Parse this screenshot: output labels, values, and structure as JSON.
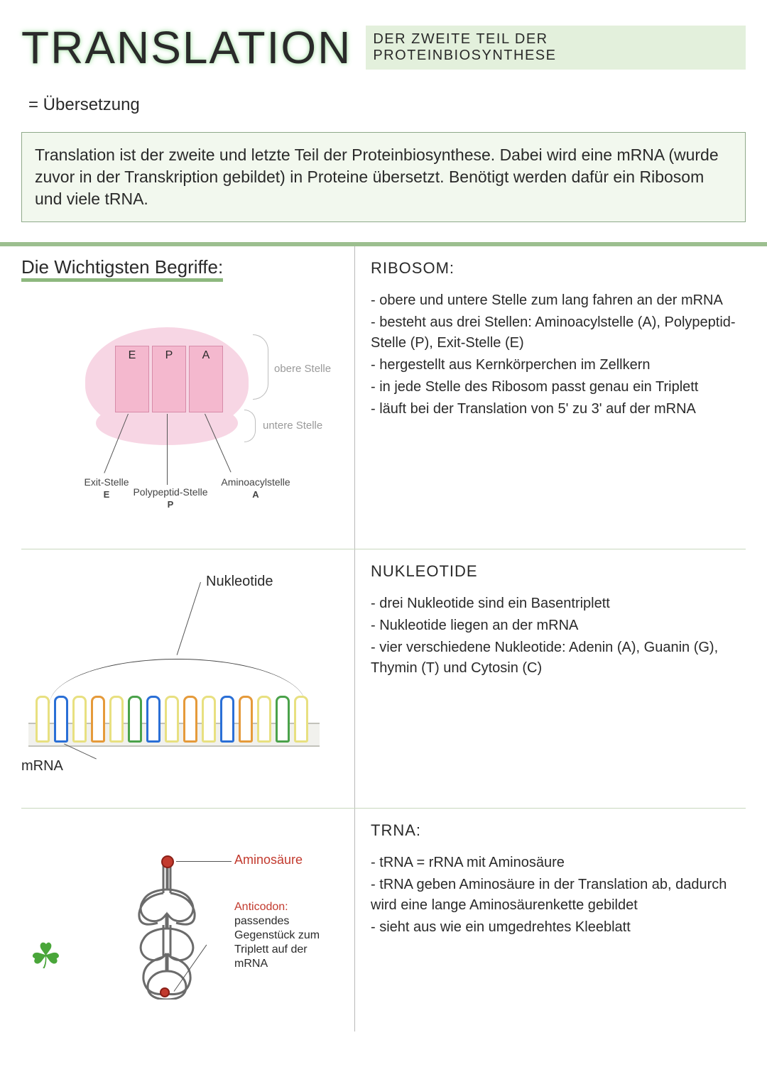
{
  "header": {
    "title": "Translation",
    "subtitle": "der zweite Teil der Proteinbiosynthese"
  },
  "equals_line": "= Übersetzung",
  "intro": "Translation ist der zweite und letzte Teil der Proteinbiosynthese. Dabei wird eine mRNA (wurde zuvor in der Transkription gebildet) in Proteine übersetzt. Benötigt werden dafür ein Ribosom und viele tRNA.",
  "begriffe_title": "Die Wichtigsten Begriffe:",
  "ribosome": {
    "heading": "RIBOSOM:",
    "bullets": [
      "- obere und untere Stelle zum lang fahren an der mRNA",
      "- besteht aus drei Stellen: Aminoacylstelle (A), Polypeptid-Stelle (P), Exit-Stelle (E)",
      "- hergestellt aus Kernkörperchen im Zellkern",
      "- in jede Stelle des Ribosom passt genau ein Triplett",
      "- läuft bei der Translation von 5' zu 3' auf der mRNA"
    ],
    "site_E": "E",
    "site_P": "P",
    "site_A": "A",
    "lbl_obere": "obere Stelle",
    "lbl_untere": "untere Stelle",
    "lbl_exit": "Exit-Stelle",
    "lbl_exit_b": "E",
    "lbl_poly": "Polypeptid-Stelle",
    "lbl_poly_b": "P",
    "lbl_amino": "Aminoacylstelle",
    "lbl_amino_b": "A"
  },
  "nukleotide": {
    "heading": "NUKLEOTIDE",
    "bullets": [
      "- drei Nukleotide sind ein Basentriplett",
      "- Nukleotide liegen an der mRNA",
      "- vier verschiedene Nukleotide: Adenin (A), Guanin (G), Thymin (T) und Cytosin (C)"
    ],
    "lbl_nukleotide": "Nukleotide",
    "lbl_mrna": "mRNA",
    "colors": [
      "#e8e080",
      "#2a6fd6",
      "#e8e080",
      "#e59a3a",
      "#e8e080",
      "#4aa24a",
      "#2a6fd6",
      "#e8e080",
      "#e59a3a",
      "#e8e080",
      "#2a6fd6",
      "#e59a3a",
      "#e8e080",
      "#4aa24a",
      "#e8e080"
    ]
  },
  "trna": {
    "heading": "tRNA:",
    "bullets": [
      "- tRNA = rRNA mit Aminosäure",
      "- tRNA geben Aminosäure in der Translation ab, dadurch wird eine lange Aminosäurenkette gebildet",
      "- sieht aus wie ein umgedrehtes Kleeblatt"
    ],
    "lbl_amino": "Aminosäure",
    "lbl_anticodon_hd": "Anticodon:",
    "lbl_anticodon_txt": "passendes Gegenstück zum Triplett auf der mRNA"
  },
  "colors": {
    "accent_green": "#9cbf8f",
    "box_bg": "#f2f8ee",
    "pink": "#f4b8ce",
    "pink_light": "#f7d6e4",
    "red": "#c23a2e"
  }
}
